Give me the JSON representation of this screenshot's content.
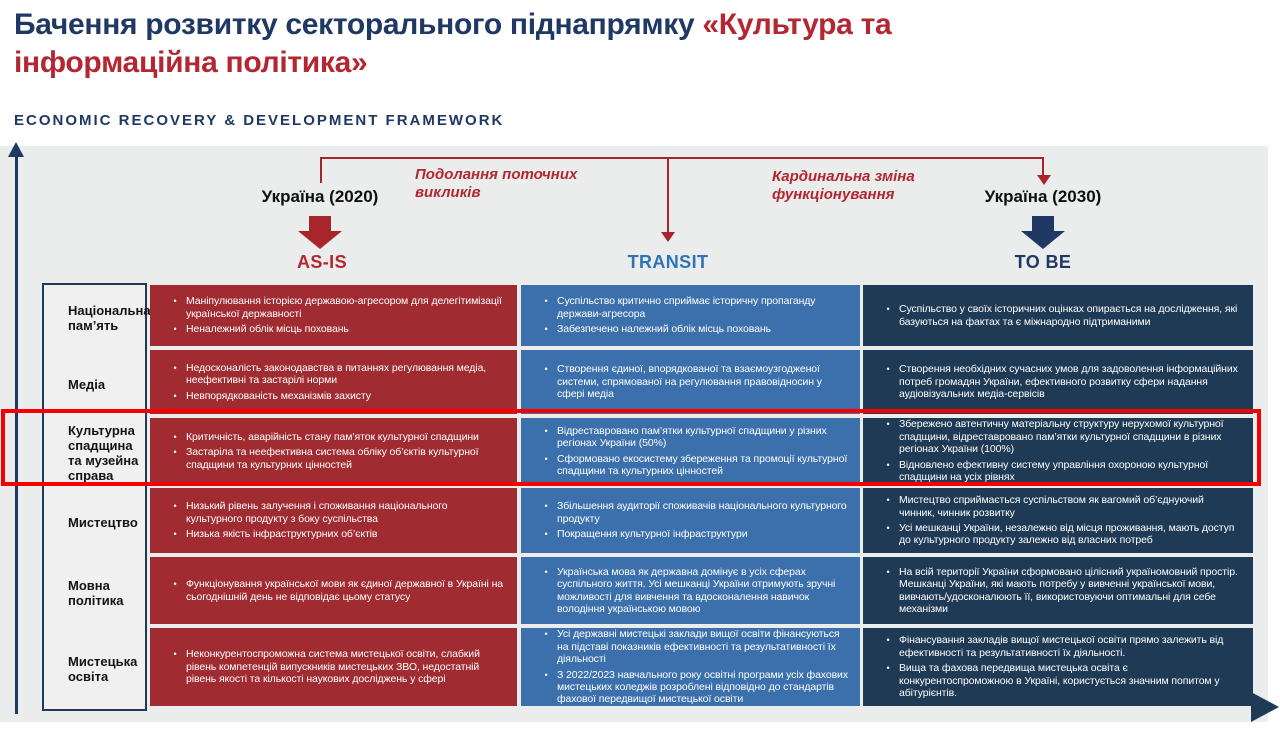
{
  "title": {
    "dark": "Бачення розвитку секторального піднапрямку ",
    "accent": "«Культура та інформаційна політика»"
  },
  "subtitle": "ECONOMIC RECOVERY & DEVELOPMENT FRAMEWORK",
  "timeline": {
    "left_year_label": "Україна (2020)",
    "right_year_label": "Україна (2030)",
    "bracket_left_note": "Подолання поточних викликів",
    "bracket_right_note": "Кардинальна зміна функціонування"
  },
  "headers": {
    "as_is": "AS-IS",
    "transit": "TRANSIT",
    "to_be": "TO BE"
  },
  "table": {
    "rows": [
      {
        "label": "Національна пам’ять",
        "highlighted": false,
        "as_is": [
          "Маніпулювання історією державою-агресором для делегітимізації української державності",
          "Неналежний облік місць поховань"
        ],
        "transit": [
          "Суспільство критично сприймає історичну пропаганду держави-агресора",
          "Забезпечено належний облік місць поховань"
        ],
        "to_be": [
          "Суспільство у своїх історичних оцінках опирається на дослідження, які базуються на фактах та є міжнародно підтриманими"
        ]
      },
      {
        "label": "Медіа",
        "highlighted": false,
        "as_is": [
          "Недосконалість законодавства в питаннях регулювання медіа, неефективні та застарілі норми",
          "Невпорядкованість механізмів захисту"
        ],
        "transit": [
          "Створення єдиної, впорядкованої та взаємоузгодженої системи, спрямованої на регулювання правовідносин у сфері медіа"
        ],
        "to_be": [
          "Створення необхідних сучасних умов для задоволення інформаційних потреб громадян України, ефективного розвитку сфери надання аудіовізуальних медіа-сервісів"
        ]
      },
      {
        "label": "Культурна спадщина та музейна справа",
        "highlighted": true,
        "as_is": [
          "Критичність, аварійність стану пам’яток культурної спадщини",
          "Застаріла та неефективна система обліку об’єктів культурної спадщини та культурних цінностей"
        ],
        "transit": [
          "Відреставровано пам’ятки культурної спадщини у різних регіонах України (50%)",
          "Сформовано екосистему збереження та промоції культурної спадщини та культурних цінностей"
        ],
        "to_be": [
          "Збережено автентичну матеріальну структуру нерухомої культурної спадщини, відреставровано пам’ятки культурної спадщини в різних регіонах України (100%)",
          "Відновлено ефективну систему управління охороною культурної спадщини на усіх рівнях"
        ]
      },
      {
        "label": "Мистецтво",
        "highlighted": false,
        "as_is": [
          "Низький рівень залучення і споживання національного культурного продукту з боку суспільства",
          "Низька якість інфраструктурних об’єктів"
        ],
        "transit": [
          "Збільшення аудиторії споживачів національного культурного продукту",
          "Покращення культурної інфраструктури"
        ],
        "to_be": [
          "Мистецтво сприймається суспільством як вагомий об’єднуючий чинник, чинник розвитку",
          "Усі мешканці України, незалежно від місця проживання, мають доступ до культурного продукту залежно від власних потреб"
        ]
      },
      {
        "label": "Мовна політика",
        "highlighted": false,
        "as_is": [
          "Функціонування української мови як єдиної державної в Україні на сьогоднішній день не відповідає цьому статусу"
        ],
        "transit": [
          "Українська мова як державна домінує в усіх сферах суспільного життя. Усі мешканці України отримують зручні можливості для вивчення та вдосконалення навичок володіння українською мовою"
        ],
        "to_be": [
          "На всій території України сформовано цілісний україномовний простір. Мешканці України, які мають потребу у вивченні української мови, вивчають/удосконалюють її, використовуючи оптимальні для себе механізми"
        ]
      },
      {
        "label": "Мистецька освіта",
        "highlighted": false,
        "as_is": [
          "Неконкурентоспроможна система мистецької освіти, слабкий рівень компетенцій випускників мистецьких ЗВО, недостатній рівень якості та кількості наукових досліджень у сфері"
        ],
        "transit": [
          "Усі державні мистецькі заклади вищої освіти фінансуються на підставі показників ефективності та результативності їх діяльності",
          "З 2022/2023 навчального року освітні програми усіх фахових мистецьких коледжів розроблені відповідно до стандартів фахової передвищої мистецької освіти"
        ],
        "to_be": [
          "Фінансування закладів вищої мистецької освіти прямо залежить від ефективності та результативності їх діяльності.",
          "Вища та фахова передвища мистецька освіта є конкурентоспроможною в Україні, користується значним попитом у абітурієнтів."
        ]
      }
    ]
  },
  "colors": {
    "title_navy": "#1f3864",
    "title_red": "#b22731",
    "bracket_red": "#a6262c",
    "as_is_bg": "#a02b31",
    "transit_bg": "#3c70ad",
    "to_be_bg": "#1f3a55",
    "as_is_heading": "#b22731",
    "transit_heading": "#2e74b5",
    "to_be_heading": "#1f3864",
    "axis_navy": "#1f3864",
    "highlight_red": "#f50000",
    "canvas_gray": "#ebecec",
    "label_box_bg": "#eff0ef",
    "label_border": "#213a5c"
  }
}
